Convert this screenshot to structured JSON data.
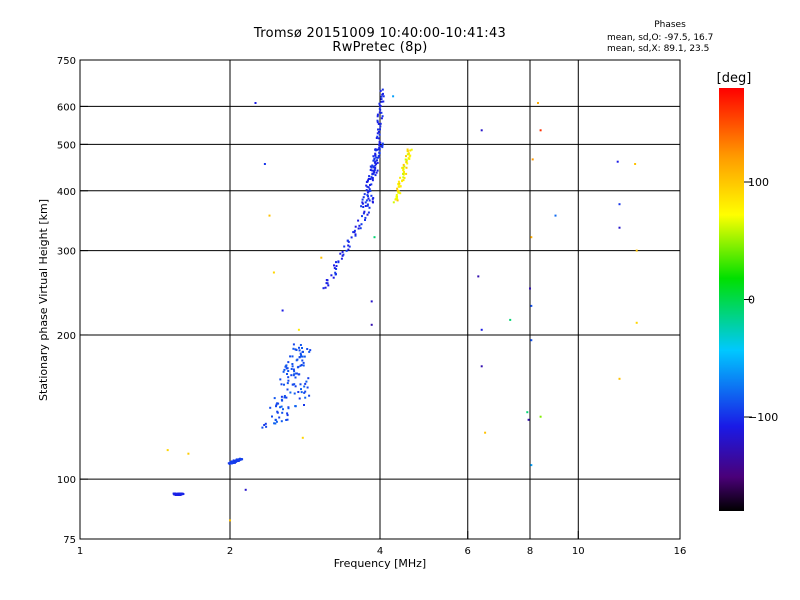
{
  "header": {
    "title": "Tromsø 20151009 10:40:00-10:41:43",
    "subtitle": "RwPretec (8p)",
    "phases_label": "Phases",
    "stat_o": "mean, sd,O: -97.5, 16.7",
    "stat_x": "mean, sd,X: 89.1, 23.5"
  },
  "colorbar": {
    "label": "[deg]",
    "ticks": [
      {
        "value": 100,
        "label": "100"
      },
      {
        "value": 0,
        "label": "0"
      },
      {
        "value": -100,
        "label": "−100"
      }
    ],
    "range": [
      -180,
      180
    ]
  },
  "chart_data": {
    "type": "scatter",
    "title": "Tromsø 20151009 10:40:00-10:41:43",
    "subtitle": "RwPretec (8p)",
    "xlabel": "Frequency [MHz]",
    "ylabel": "Stationary phase Virtual Height [km]",
    "x_scale": "log",
    "y_scale": "log",
    "xlim": [
      1,
      16
    ],
    "ylim": [
      75,
      750
    ],
    "x_ticks": [
      {
        "v": 1,
        "label": "1"
      },
      {
        "v": 2,
        "label": "2"
      },
      {
        "v": 4,
        "label": "4"
      },
      {
        "v": 6,
        "label": "6"
      },
      {
        "v": 8,
        "label": "8"
      },
      {
        "v": 10,
        "label": "10"
      },
      {
        "v": 16,
        "label": "16"
      }
    ],
    "x_gridlines": [
      2,
      4,
      6,
      8,
      10
    ],
    "y_ticks": [
      {
        "v": 75,
        "label": "75"
      },
      {
        "v": 100,
        "label": "100"
      },
      {
        "v": 200,
        "label": "200"
      },
      {
        "v": 300,
        "label": "300"
      },
      {
        "v": 400,
        "label": "400"
      },
      {
        "v": 500,
        "label": "500"
      },
      {
        "v": 600,
        "label": "600"
      },
      {
        "v": 750,
        "label": "750"
      }
    ],
    "y_gridlines": [
      100,
      200,
      300,
      400,
      500,
      600
    ],
    "color_quantity": "phase [deg]",
    "traces": [
      {
        "x": [
          1.55,
          1.6
        ],
        "y": [
          93,
          93
        ],
        "phase": [
          -110,
          -105
        ],
        "spread": 0.008
      },
      {
        "x": [
          2.0,
          2.1
        ],
        "y": [
          108,
          110
        ],
        "phase": [
          -95,
          -100
        ],
        "spread": 0.01
      },
      {
        "x": [
          2.45,
          2.8
        ],
        "y": [
          130,
          160
        ],
        "phase": [
          -100,
          -80
        ],
        "spread": 0.06
      },
      {
        "x": [
          2.6,
          2.8
        ],
        "y": [
          160,
          190
        ],
        "phase": [
          -95,
          -85
        ],
        "spread": 0.04
      },
      {
        "x": [
          3.1,
          3.9
        ],
        "y": [
          250,
          390
        ],
        "phase": [
          -115,
          -95
        ],
        "spread": 0.015
      },
      {
        "x": [
          3.7,
          4.0
        ],
        "y": [
          370,
          500
        ],
        "phase": [
          -110,
          -95
        ],
        "spread": 0.015
      },
      {
        "x": [
          3.9,
          4.05
        ],
        "y": [
          420,
          650
        ],
        "phase": [
          -110,
          -100
        ],
        "spread": 0.012
      },
      {
        "x": [
          4.3,
          4.6
        ],
        "y": [
          380,
          490
        ],
        "phase": [
          60,
          110
        ],
        "spread": 0.012
      }
    ],
    "points": [
      {
        "x": 1.5,
        "y": 115,
        "phase": 100
      },
      {
        "x": 1.65,
        "y": 113,
        "phase": 105
      },
      {
        "x": 2.0,
        "y": 82,
        "phase": 110
      },
      {
        "x": 2.15,
        "y": 95,
        "phase": -120
      },
      {
        "x": 2.25,
        "y": 610,
        "phase": -110
      },
      {
        "x": 2.35,
        "y": 455,
        "phase": -100
      },
      {
        "x": 2.4,
        "y": 355,
        "phase": 110
      },
      {
        "x": 2.45,
        "y": 270,
        "phase": 100
      },
      {
        "x": 2.55,
        "y": 225,
        "phase": -110
      },
      {
        "x": 2.75,
        "y": 205,
        "phase": 90
      },
      {
        "x": 2.8,
        "y": 122,
        "phase": 100
      },
      {
        "x": 3.05,
        "y": 290,
        "phase": 110
      },
      {
        "x": 3.85,
        "y": 235,
        "phase": -120
      },
      {
        "x": 3.85,
        "y": 210,
        "phase": -130
      },
      {
        "x": 3.9,
        "y": 320,
        "phase": -20
      },
      {
        "x": 4.25,
        "y": 630,
        "phase": -60
      },
      {
        "x": 6.3,
        "y": 265,
        "phase": -130
      },
      {
        "x": 6.4,
        "y": 535,
        "phase": -120
      },
      {
        "x": 6.4,
        "y": 205,
        "phase": -110
      },
      {
        "x": 6.4,
        "y": 172,
        "phase": -130
      },
      {
        "x": 6.5,
        "y": 125,
        "phase": 110
      },
      {
        "x": 7.3,
        "y": 215,
        "phase": -20
      },
      {
        "x": 7.9,
        "y": 138,
        "phase": -20
      },
      {
        "x": 7.95,
        "y": 133,
        "phase": -130
      },
      {
        "x": 8.0,
        "y": 250,
        "phase": -130
      },
      {
        "x": 8.05,
        "y": 230,
        "phase": -90
      },
      {
        "x": 8.05,
        "y": 195,
        "phase": -90
      },
      {
        "x": 8.05,
        "y": 107,
        "phase": -60
      },
      {
        "x": 8.05,
        "y": 320,
        "phase": 120
      },
      {
        "x": 8.1,
        "y": 465,
        "phase": 130
      },
      {
        "x": 8.3,
        "y": 610,
        "phase": 120
      },
      {
        "x": 8.4,
        "y": 535,
        "phase": 165
      },
      {
        "x": 8.4,
        "y": 135,
        "phase": 40
      },
      {
        "x": 9.0,
        "y": 355,
        "phase": -80
      },
      {
        "x": 12.0,
        "y": 460,
        "phase": -110
      },
      {
        "x": 12.1,
        "y": 375,
        "phase": -100
      },
      {
        "x": 12.1,
        "y": 335,
        "phase": -120
      },
      {
        "x": 12.1,
        "y": 162,
        "phase": 110
      },
      {
        "x": 13.0,
        "y": 455,
        "phase": 110
      },
      {
        "x": 13.1,
        "y": 300,
        "phase": 110
      },
      {
        "x": 13.1,
        "y": 212,
        "phase": 100
      }
    ]
  }
}
